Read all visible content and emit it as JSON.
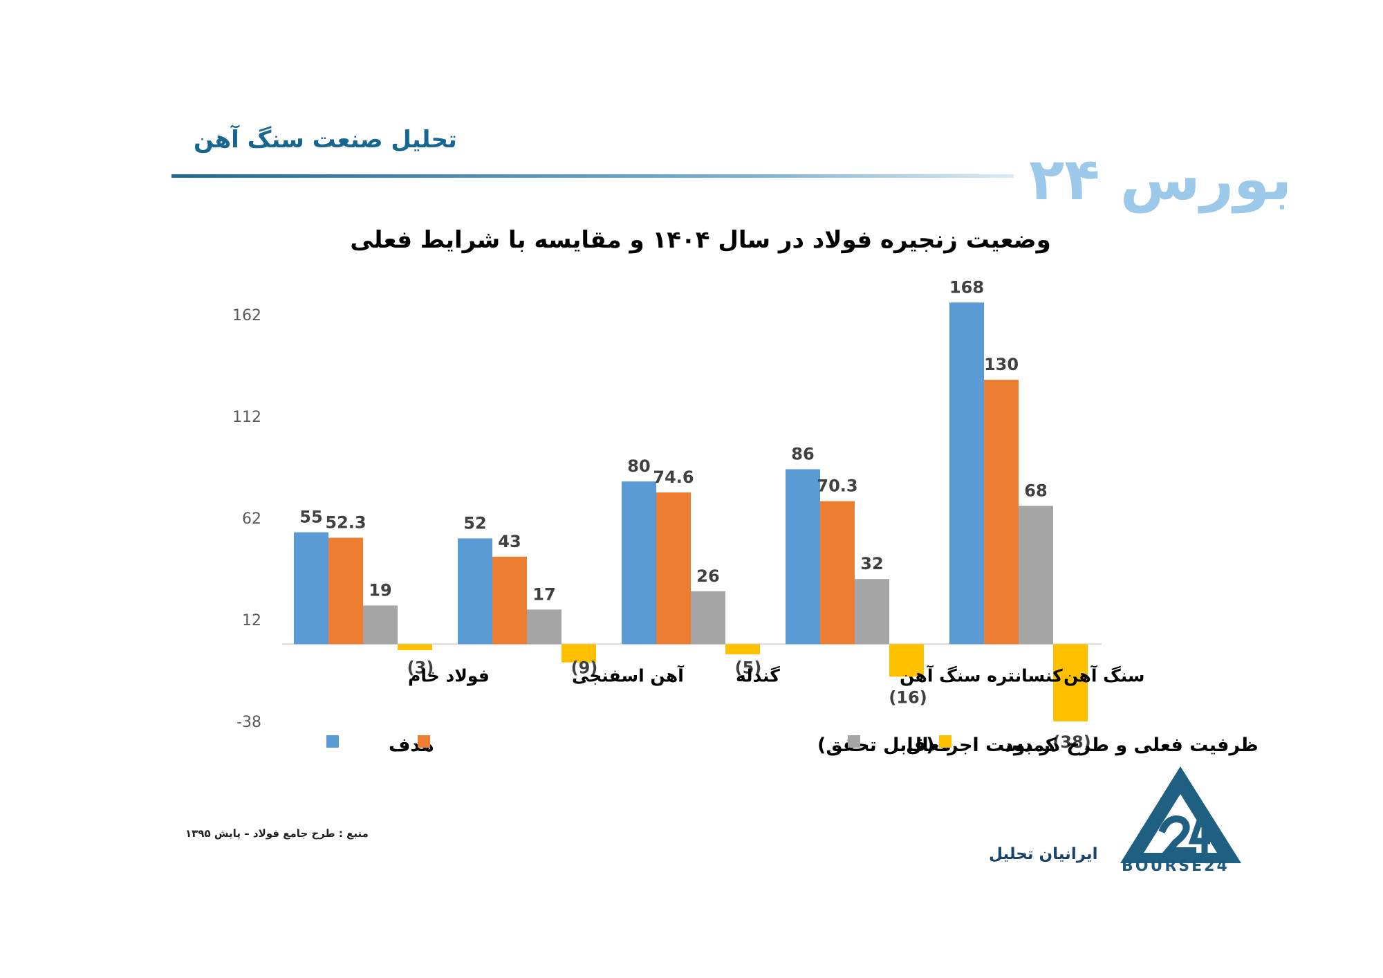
{
  "header": {
    "title": "تحلیل صنعت سنگ آهن",
    "logo_text": "بورس ۲۴"
  },
  "chart_data": {
    "type": "bar",
    "title": "وضعیت زنجیره فولاد در سال ۱۴۰۴ و مقایسه با شرایط فعلی",
    "categories": [
      "فولاد خام",
      "آهن اسفنجی",
      "گندله",
      "کنسانتره سنگ آهن",
      "سنگ آهن"
    ],
    "series": [
      {
        "name": "هدف",
        "color": "#5b9bd5",
        "values": [
          55,
          52,
          80,
          86,
          168
        ],
        "labels": [
          "55",
          "52",
          "80",
          "86",
          "168"
        ]
      },
      {
        "name": "ظرفیت فعلی و طرح در دست اجرا (قابل تحقق)",
        "color": "#ed7d31",
        "values": [
          52.3,
          43,
          74.6,
          70.3,
          130
        ],
        "labels": [
          "52.3",
          "43",
          "74.6",
          "70.3",
          "130"
        ]
      },
      {
        "name": "فعال",
        "color": "#a5a5a5",
        "values": [
          19,
          17,
          26,
          32,
          68
        ],
        "labels": [
          "19",
          "17",
          "26",
          "32",
          "68"
        ]
      },
      {
        "name": "کمبود",
        "color": "#ffc000",
        "values": [
          -3,
          -9,
          -5,
          -16,
          -38
        ],
        "labels": [
          "(3)",
          "(9)",
          "(5)",
          "(16)",
          "(38)"
        ]
      }
    ],
    "yticks": [
      "162",
      "112",
      "62",
      "12",
      "-38"
    ],
    "ylim": [
      -38,
      162
    ],
    "legend": "bottom",
    "grid": false
  },
  "footer": {
    "source": "منبع : طرح جامع فولاد – پایش ۱۳۹۵",
    "brand": "ایرانیان تحلیل",
    "logo_text": "BOURSE24"
  }
}
